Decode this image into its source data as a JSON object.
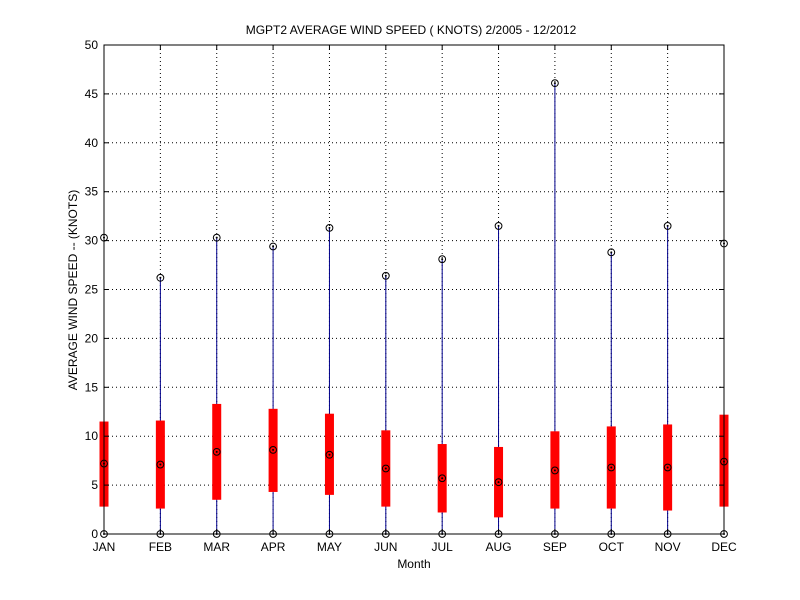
{
  "chart_data": {
    "type": "box",
    "title": "MGPT2  AVERAGE WIND SPEED ( KNOTS) 2/2005 - 12/2012",
    "xlabel": "Month",
    "ylabel": "AVERAGE WIND SPEED -- (KNOTS)",
    "ylim": [
      0,
      50
    ],
    "yticks": [
      0,
      5,
      10,
      15,
      20,
      25,
      30,
      35,
      40,
      45,
      50
    ],
    "grid": true,
    "categories": [
      "JAN",
      "FEB",
      "MAR",
      "APR",
      "MAY",
      "JUN",
      "JUL",
      "AUG",
      "SEP",
      "OCT",
      "NOV",
      "DEC"
    ],
    "min": [
      0,
      0,
      0,
      0,
      0,
      0,
      0,
      0,
      0,
      0,
      0,
      0
    ],
    "q1": [
      2.8,
      2.6,
      3.5,
      4.3,
      4.0,
      2.8,
      2.2,
      1.7,
      2.6,
      2.6,
      2.4,
      2.8
    ],
    "median": [
      7.2,
      7.1,
      8.4,
      8.6,
      8.1,
      6.7,
      5.7,
      5.3,
      6.5,
      6.8,
      6.8,
      7.4
    ],
    "q3": [
      11.5,
      11.6,
      13.3,
      12.8,
      12.3,
      10.6,
      9.2,
      8.9,
      10.5,
      11.0,
      11.2,
      12.2
    ],
    "max": [
      30.3,
      26.2,
      30.3,
      29.4,
      31.3,
      26.4,
      28.1,
      31.5,
      46.1,
      28.8,
      31.5,
      29.7
    ],
    "colors": {
      "box": "#ff0000",
      "whisker": "#00008b",
      "marker": "#000000",
      "grid": "#000000"
    }
  }
}
